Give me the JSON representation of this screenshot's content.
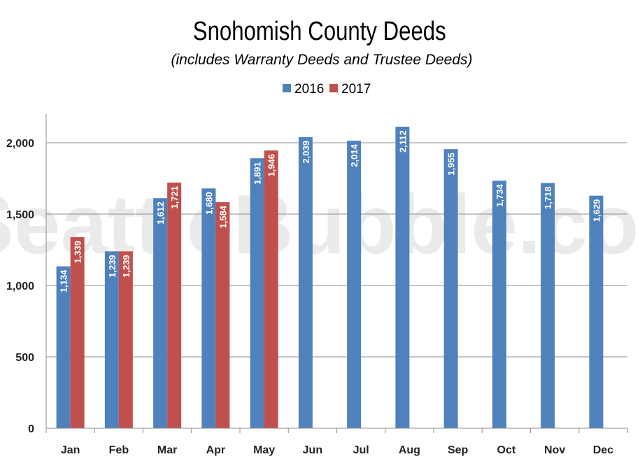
{
  "watermark": "SeattleBubble.com",
  "chart_data": {
    "type": "bar",
    "title": "Snohomish County Deeds",
    "subtitle": "(includes Warranty Deeds and Trustee Deeds)",
    "categories": [
      "Jan",
      "Feb",
      "Mar",
      "Apr",
      "May",
      "Jun",
      "Jul",
      "Aug",
      "Sep",
      "Oct",
      "Nov",
      "Dec"
    ],
    "series": [
      {
        "name": "2016",
        "color": "#4f81bd",
        "values": [
          1134,
          1239,
          1612,
          1680,
          1891,
          2039,
          2014,
          2112,
          1955,
          1734,
          1718,
          1629
        ],
        "labels": [
          "1,134",
          "1,239",
          "1,612",
          "1,680",
          "1,891",
          "2,039",
          "2,014",
          "2,112",
          "1,955",
          "1,734",
          "1,718",
          "1,629"
        ]
      },
      {
        "name": "2017",
        "color": "#c0504d",
        "values": [
          1339,
          1239,
          1721,
          1584,
          1946,
          null,
          null,
          null,
          null,
          null,
          null,
          null
        ],
        "labels": [
          "1,339",
          "1,239",
          "1,721",
          "1,584",
          "1,946",
          "",
          "",
          "",
          "",
          "",
          "",
          ""
        ]
      }
    ],
    "y_ticks": [
      0,
      500,
      1000,
      1500,
      2000
    ],
    "y_tick_labels": [
      "0",
      "500",
      "1,000",
      "1,500",
      "2,000"
    ],
    "ylim": [
      0,
      2200
    ],
    "grid": true,
    "legend_position": "top-center"
  }
}
